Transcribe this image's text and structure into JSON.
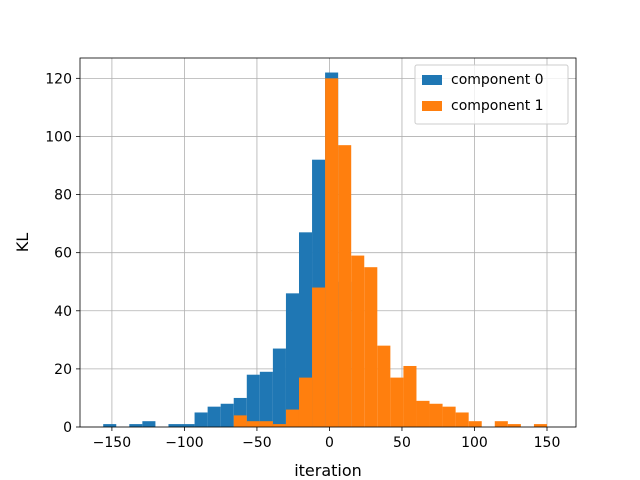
{
  "chart_data": {
    "type": "bar",
    "chart_kind": "overlaid histogram",
    "title": "",
    "xlabel": "iteration",
    "ylabel": "KL",
    "xlim": [
      -172,
      170
    ],
    "ylim": [
      0,
      127
    ],
    "xticks": [
      -150,
      -100,
      -50,
      0,
      50,
      100,
      150
    ],
    "yticks": [
      0,
      20,
      40,
      60,
      80,
      100,
      120
    ],
    "grid": true,
    "legend_position": "top-right",
    "series": [
      {
        "name": "component 0",
        "color": "#1f77b4",
        "bins": [
          {
            "x0": -156,
            "x1": -147,
            "count": 1
          },
          {
            "x0": -138,
            "x1": -129,
            "count": 1
          },
          {
            "x0": -129,
            "x1": -120,
            "count": 2
          },
          {
            "x0": -111,
            "x1": -102,
            "count": 1
          },
          {
            "x0": -102,
            "x1": -93,
            "count": 1
          },
          {
            "x0": -93,
            "x1": -84,
            "count": 5
          },
          {
            "x0": -84,
            "x1": -75,
            "count": 7
          },
          {
            "x0": -75,
            "x1": -66,
            "count": 8
          },
          {
            "x0": -66,
            "x1": -57,
            "count": 10
          },
          {
            "x0": -57,
            "x1": -48,
            "count": 18
          },
          {
            "x0": -48,
            "x1": -39,
            "count": 19
          },
          {
            "x0": -39,
            "x1": -30,
            "count": 27
          },
          {
            "x0": -30,
            "x1": -21,
            "count": 46
          },
          {
            "x0": -21,
            "x1": -12,
            "count": 67
          },
          {
            "x0": -12,
            "x1": -3,
            "count": 92
          },
          {
            "x0": -3,
            "x1": 6,
            "count": 122
          },
          {
            "x0": 6,
            "x1": 15,
            "count": 50
          }
        ]
      },
      {
        "name": "component 1",
        "color": "#ff7f0e",
        "bins": [
          {
            "x0": -66,
            "x1": -57,
            "count": 4
          },
          {
            "x0": -57,
            "x1": -48,
            "count": 2
          },
          {
            "x0": -48,
            "x1": -39,
            "count": 2
          },
          {
            "x0": -39,
            "x1": -30,
            "count": 1
          },
          {
            "x0": -30,
            "x1": -21,
            "count": 6
          },
          {
            "x0": -21,
            "x1": -12,
            "count": 17
          },
          {
            "x0": -12,
            "x1": -3,
            "count": 48
          },
          {
            "x0": -3,
            "x1": 6,
            "count": 120
          },
          {
            "x0": 6,
            "x1": 15,
            "count": 97
          },
          {
            "x0": 15,
            "x1": 24,
            "count": 59
          },
          {
            "x0": 24,
            "x1": 33,
            "count": 55
          },
          {
            "x0": 33,
            "x1": 42,
            "count": 28
          },
          {
            "x0": 42,
            "x1": 51,
            "count": 17
          },
          {
            "x0": 51,
            "x1": 60,
            "count": 21
          },
          {
            "x0": 60,
            "x1": 69,
            "count": 9
          },
          {
            "x0": 69,
            "x1": 78,
            "count": 8
          },
          {
            "x0": 78,
            "x1": 87,
            "count": 7
          },
          {
            "x0": 87,
            "x1": 96,
            "count": 5
          },
          {
            "x0": 96,
            "x1": 105,
            "count": 2
          },
          {
            "x0": 105,
            "x1": 114,
            "count": 0
          },
          {
            "x0": 114,
            "x1": 123,
            "count": 2
          },
          {
            "x0": 123,
            "x1": 132,
            "count": 1
          },
          {
            "x0": 141,
            "x1": 150,
            "count": 1
          }
        ]
      }
    ]
  }
}
